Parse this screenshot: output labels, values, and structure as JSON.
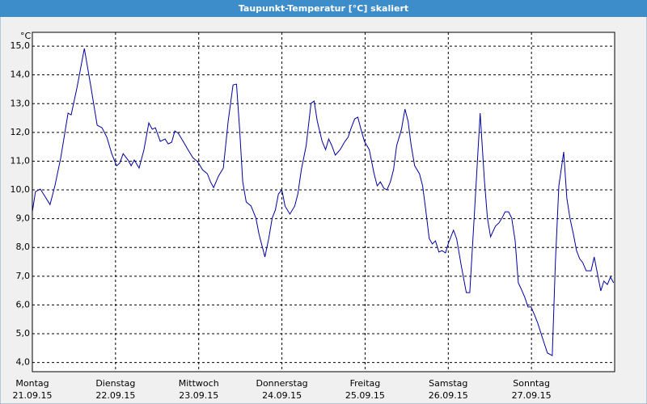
{
  "chart_data": {
    "type": "line",
    "title": "Taupunkt-Temperatur [°C] skaliert",
    "y_unit": "°C",
    "color": "#0000a0",
    "grid": true,
    "xlim": [
      0,
      168
    ],
    "ylim": [
      3.68,
      15.48
    ],
    "xticks": [
      {
        "value": 0,
        "label": [
          "Montag",
          "21.09.15"
        ]
      },
      {
        "value": 24,
        "label": [
          "Dienstag",
          "22.09.15"
        ]
      },
      {
        "value": 48,
        "label": [
          "Mittwoch",
          "23.09.15"
        ]
      },
      {
        "value": 72,
        "label": [
          "Donnerstag",
          "24.09.15"
        ]
      },
      {
        "value": 96,
        "label": [
          "Freitag",
          "25.09.15"
        ]
      },
      {
        "value": 120,
        "label": [
          "Samstag",
          "26.09.15"
        ]
      },
      {
        "value": 144,
        "label": [
          "Sonntag",
          "27.09.15"
        ]
      }
    ],
    "yticks": [
      {
        "value": 4,
        "label": "4,0"
      },
      {
        "value": 5,
        "label": "5,0"
      },
      {
        "value": 6,
        "label": "6,0"
      },
      {
        "value": 7,
        "label": "7,0"
      },
      {
        "value": 8,
        "label": "8,0"
      },
      {
        "value": 9,
        "label": "9,0"
      },
      {
        "value": 10,
        "label": "10,0"
      },
      {
        "value": 11,
        "label": "11,0"
      },
      {
        "value": 12,
        "label": "12,0"
      },
      {
        "value": 13,
        "label": "13,0"
      },
      {
        "value": 14,
        "label": "14,0"
      },
      {
        "value": 15,
        "label": "15,0"
      }
    ],
    "x": [
      0,
      0.9,
      2.3,
      3.5,
      5.1,
      6.5,
      8.2,
      10.3,
      11.2,
      12.9,
      15.0,
      16.8,
      18.7,
      20.1,
      21.5,
      22.9,
      24.3,
      25.2,
      26.2,
      27.6,
      28.5,
      29.4,
      30.8,
      32.2,
      33.6,
      34.6,
      35.5,
      36.9,
      38.3,
      39.2,
      40.2,
      41.1,
      42.1,
      43.5,
      44.9,
      46.3,
      47.7,
      49.1,
      50.5,
      51.4,
      52.3,
      53.7,
      55.1,
      56.5,
      57.9,
      58.9,
      59.8,
      60.7,
      61.7,
      63.1,
      64.5,
      65.4,
      67.1,
      68.2,
      69.2,
      70.1,
      71.0,
      72.0,
      72.9,
      74.3,
      75.7,
      76.6,
      77.6,
      79.0,
      80.4,
      81.3,
      82.2,
      83.6,
      84.6,
      85.5,
      86.4,
      87.4,
      88.8,
      90.2,
      91.1,
      92.0,
      93.0,
      93.9,
      94.8,
      95.8,
      97.2,
      98.6,
      99.5,
      100.4,
      101.4,
      102.3,
      103.3,
      104.2,
      105.1,
      106.5,
      107.5,
      108.4,
      109.3,
      110.3,
      111.7,
      112.6,
      113.5,
      114.5,
      115.4,
      116.3,
      117.3,
      118.2,
      119.2,
      120.1,
      121.5,
      122.4,
      123.8,
      125.2,
      126.2,
      127.6,
      129.2,
      130.4,
      131.3,
      132.2,
      133.6,
      134.6,
      135.5,
      136.4,
      137.4,
      138.3,
      139.3,
      140.2,
      141.1,
      142.1,
      143.0,
      143.9,
      144.9,
      145.8,
      146.7,
      147.7,
      148.6,
      150.0,
      150.9,
      151.9,
      153.3,
      154.2,
      155.1,
      156.1,
      157.0,
      157.9,
      158.8,
      159.8,
      161.2,
      162.1,
      163.1,
      164.0,
      164.9,
      165.9,
      166.8,
      167.7
    ],
    "values": [
      9.24,
      9.94,
      10.03,
      9.8,
      9.49,
      10.14,
      11.12,
      12.67,
      12.61,
      13.57,
      14.92,
      13.65,
      12.25,
      12.16,
      11.83,
      11.26,
      10.84,
      10.93,
      11.26,
      11.04,
      10.84,
      11.04,
      10.76,
      11.4,
      12.33,
      12.11,
      12.16,
      11.69,
      11.77,
      11.6,
      11.66,
      12.05,
      11.97,
      11.69,
      11.4,
      11.12,
      10.98,
      10.7,
      10.56,
      10.28,
      10.08,
      10.48,
      10.76,
      12.39,
      13.65,
      13.68,
      12.11,
      10.28,
      9.58,
      9.44,
      9.02,
      8.46,
      7.67,
      8.31,
      9.02,
      9.3,
      9.86,
      10.0,
      9.44,
      9.16,
      9.44,
      9.86,
      10.7,
      11.54,
      13.01,
      13.09,
      12.39,
      11.69,
      11.4,
      11.77,
      11.54,
      11.21,
      11.4,
      11.69,
      11.83,
      12.16,
      12.47,
      12.53,
      12.11,
      11.69,
      11.4,
      10.56,
      10.14,
      10.28,
      10.06,
      10.0,
      10.28,
      10.7,
      11.54,
      12.11,
      12.81,
      12.39,
      11.54,
      10.84,
      10.56,
      10.14,
      9.3,
      8.31,
      8.12,
      8.23,
      7.84,
      7.89,
      7.81,
      8.17,
      8.6,
      8.31,
      7.33,
      6.43,
      6.43,
      9.3,
      12.67,
      10.37,
      9.02,
      8.37,
      8.74,
      8.85,
      9.02,
      9.24,
      9.24,
      9.02,
      8.23,
      6.77,
      6.54,
      6.26,
      5.93,
      5.93,
      5.65,
      5.37,
      5.03,
      4.66,
      4.33,
      4.24,
      7.47,
      10.14,
      11.32,
      9.72,
      9.02,
      8.46,
      7.89,
      7.61,
      7.47,
      7.19,
      7.19,
      7.67,
      7.05,
      6.49,
      6.83,
      6.71,
      6.97,
      6.77
    ]
  }
}
